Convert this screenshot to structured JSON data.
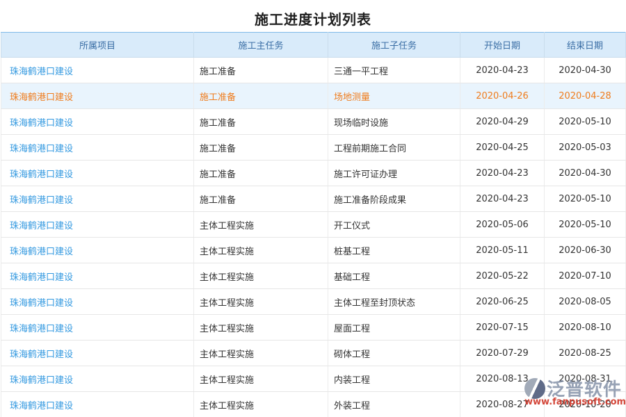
{
  "page_title": "施工进度计划列表",
  "table": {
    "columns": [
      {
        "key": "project",
        "label": "所属项目"
      },
      {
        "key": "main_task",
        "label": "施工主任务"
      },
      {
        "key": "sub_task",
        "label": "施工子任务"
      },
      {
        "key": "start_date",
        "label": "开始日期"
      },
      {
        "key": "end_date",
        "label": "结束日期"
      }
    ],
    "rows": [
      {
        "project": "珠海鹤港口建设",
        "main_task": "施工准备",
        "sub_task": "三通一平工程",
        "start_date": "2020-04-23",
        "end_date": "2020-04-30",
        "highlighted": false
      },
      {
        "project": "珠海鹤港口建设",
        "main_task": "施工准备",
        "sub_task": "场地测量",
        "start_date": "2020-04-26",
        "end_date": "2020-04-28",
        "highlighted": true
      },
      {
        "project": "珠海鹤港口建设",
        "main_task": "施工准备",
        "sub_task": "现场临时设施",
        "start_date": "2020-04-29",
        "end_date": "2020-05-10",
        "highlighted": false
      },
      {
        "project": "珠海鹤港口建设",
        "main_task": "施工准备",
        "sub_task": "工程前期施工合同",
        "start_date": "2020-04-25",
        "end_date": "2020-05-03",
        "highlighted": false
      },
      {
        "project": "珠海鹤港口建设",
        "main_task": "施工准备",
        "sub_task": "施工许可证办理",
        "start_date": "2020-04-23",
        "end_date": "2020-04-30",
        "highlighted": false
      },
      {
        "project": "珠海鹤港口建设",
        "main_task": "施工准备",
        "sub_task": "施工准备阶段成果",
        "start_date": "2020-04-23",
        "end_date": "2020-05-10",
        "highlighted": false
      },
      {
        "project": "珠海鹤港口建设",
        "main_task": "主体工程实施",
        "sub_task": "开工仪式",
        "start_date": "2020-05-06",
        "end_date": "2020-05-10",
        "highlighted": false
      },
      {
        "project": "珠海鹤港口建设",
        "main_task": "主体工程实施",
        "sub_task": "桩基工程",
        "start_date": "2020-05-11",
        "end_date": "2020-06-30",
        "highlighted": false
      },
      {
        "project": "珠海鹤港口建设",
        "main_task": "主体工程实施",
        "sub_task": "基础工程",
        "start_date": "2020-05-22",
        "end_date": "2020-07-10",
        "highlighted": false
      },
      {
        "project": "珠海鹤港口建设",
        "main_task": "主体工程实施",
        "sub_task": "主体工程至封顶状态",
        "start_date": "2020-06-25",
        "end_date": "2020-08-05",
        "highlighted": false
      },
      {
        "project": "珠海鹤港口建设",
        "main_task": "主体工程实施",
        "sub_task": "屋面工程",
        "start_date": "2020-07-15",
        "end_date": "2020-08-10",
        "highlighted": false
      },
      {
        "project": "珠海鹤港口建设",
        "main_task": "主体工程实施",
        "sub_task": "砌体工程",
        "start_date": "2020-07-29",
        "end_date": "2020-08-25",
        "highlighted": false
      },
      {
        "project": "珠海鹤港口建设",
        "main_task": "主体工程实施",
        "sub_task": "内装工程",
        "start_date": "2020-08-13",
        "end_date": "2020-08-31",
        "highlighted": false
      },
      {
        "project": "珠海鹤港口建设",
        "main_task": "主体工程实施",
        "sub_task": "外装工程",
        "start_date": "2020-08-27",
        "end_date": "2020-10-20",
        "highlighted": false
      }
    ]
  },
  "watermark": {
    "brand": "泛普软件",
    "url": "www.fanpusoft.com"
  },
  "colors": {
    "header_bg": "#d9ebfa",
    "header_text": "#3a6ea5",
    "link_blue": "#3399e0",
    "highlight_bg": "#e9f4fd",
    "highlight_text": "#ef7c1d",
    "watermark_url_red": "#d0382a"
  }
}
